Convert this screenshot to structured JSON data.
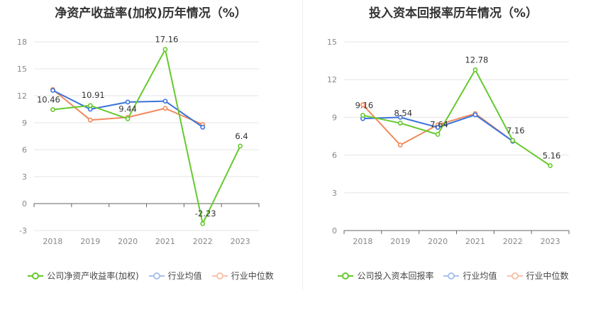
{
  "charts": [
    {
      "title": "净资产收益率(加权)历年情况（%）",
      "legend": [
        "公司净资产收益率(加权)",
        "行业均值",
        "行业中位数"
      ],
      "chart_data": {
        "type": "line",
        "x": [
          "2018",
          "2019",
          "2020",
          "2021",
          "2022",
          "2023"
        ],
        "ylim": [
          -3,
          18
        ],
        "yticks": [
          -3,
          0,
          3,
          6,
          9,
          12,
          15,
          18
        ],
        "grid": true,
        "legend_position": "bottom",
        "series": [
          {
            "name": "公司净资产收益率(加权)",
            "color": "#66c92e",
            "values": [
              10.46,
              10.91,
              9.44,
              17.16,
              -2.23,
              6.4
            ],
            "labels": [
              "10.46",
              "10.91",
              "9.44",
              "17.16",
              "-2.23",
              "6.4"
            ]
          },
          {
            "name": "行业均值",
            "color": "#3b73d9",
            "values": [
              12.6,
              10.5,
              11.3,
              11.4,
              8.5,
              null
            ]
          },
          {
            "name": "行业中位数",
            "color": "#f08a5d",
            "values": [
              12.7,
              9.3,
              9.6,
              10.6,
              8.8,
              null
            ]
          }
        ]
      }
    },
    {
      "title": "投入资本回报率历年情况（%）",
      "legend": [
        "公司投入资本回报率",
        "行业均值",
        "行业中位数"
      ],
      "chart_data": {
        "type": "line",
        "x": [
          "2018",
          "2019",
          "2020",
          "2021",
          "2022",
          "2023"
        ],
        "ylim": [
          0,
          15
        ],
        "yticks": [
          0,
          3,
          6,
          9,
          12,
          15
        ],
        "grid": true,
        "legend_position": "bottom",
        "series": [
          {
            "name": "公司投入资本回报率",
            "color": "#66c92e",
            "values": [
              9.16,
              8.54,
              7.64,
              12.78,
              7.16,
              5.16
            ],
            "labels": [
              "9.16",
              "8.54",
              "7.64",
              "12.78",
              "7.16",
              "5.16"
            ]
          },
          {
            "name": "行业均值",
            "color": "#3b73d9",
            "values": [
              8.9,
              9.0,
              8.2,
              9.2,
              7.1,
              null
            ]
          },
          {
            "name": "行业中位数",
            "color": "#f08a5d",
            "values": [
              10.0,
              6.8,
              8.4,
              9.3,
              7.1,
              null
            ]
          }
        ]
      }
    }
  ]
}
